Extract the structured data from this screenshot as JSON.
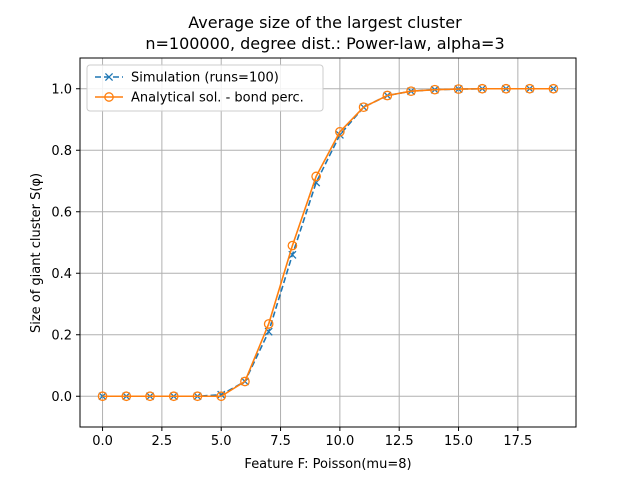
{
  "chart_data": {
    "type": "line",
    "title": "Average size of the largest cluster",
    "subtitle": "n=100000, degree dist.: Power-law, alpha=3",
    "xlabel": "Feature F: Poisson(mu=8)",
    "ylabel": "Size of giant cluster S(φ)",
    "xlim": [
      -0.95,
      19.95
    ],
    "ylim": [
      -0.1,
      1.1
    ],
    "xticks": [
      0,
      2.5,
      5,
      7.5,
      10,
      12.5,
      15,
      17.5
    ],
    "xtick_labels": [
      "0.0",
      "2.5",
      "5.0",
      "7.5",
      "10.0",
      "12.5",
      "15.0",
      "17.5"
    ],
    "yticks": [
      0,
      0.2,
      0.4,
      0.6,
      0.8,
      1.0
    ],
    "ytick_labels": [
      "0.0",
      "0.2",
      "0.4",
      "0.6",
      "0.8",
      "1.0"
    ],
    "grid": true,
    "legend_position": "top-left",
    "x": [
      0,
      1,
      2,
      3,
      4,
      5,
      6,
      7,
      8,
      9,
      10,
      11,
      12,
      13,
      14,
      15,
      16,
      17,
      18,
      19
    ],
    "series": [
      {
        "name": "Simulation (runs=100)",
        "color": "#1f77b4",
        "linestyle": "dashed",
        "marker": "x",
        "values": [
          0,
          0,
          0,
          0,
          0,
          0.005,
          0.048,
          0.21,
          0.46,
          0.695,
          0.85,
          0.94,
          0.978,
          0.992,
          0.997,
          0.999,
          1.0,
          1.0,
          1.0,
          1.0
        ]
      },
      {
        "name": "Analytical sol. - bond perc.",
        "color": "#ff7f0e",
        "linestyle": "solid",
        "marker": "circle-open",
        "values": [
          0,
          0,
          0,
          0,
          0,
          0,
          0.048,
          0.235,
          0.49,
          0.715,
          0.86,
          0.94,
          0.978,
          0.992,
          0.997,
          0.999,
          1.0,
          1.0,
          1.0,
          1.0
        ]
      }
    ]
  }
}
